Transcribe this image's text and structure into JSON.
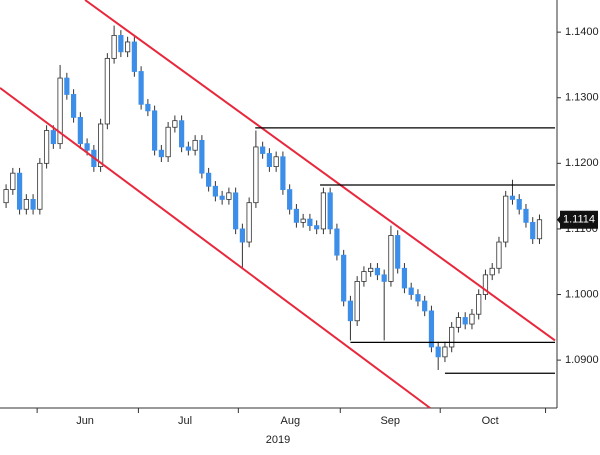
{
  "chart_data": {
    "type": "candlestick",
    "year_label": "2019",
    "up_color": "#ffffff",
    "down_color": "#3d8ee8",
    "wick_color": "#333333",
    "open": [
      1.114,
      1.116,
      1.1185,
      1.113,
      1.1145,
      1.113,
      1.12,
      1.125,
      1.123,
      1.133,
      1.1305,
      1.127,
      1.123,
      1.122,
      1.1195,
      1.126,
      1.136,
      1.1395,
      1.137,
      1.1385,
      1.134,
      1.129,
      1.128,
      1.122,
      1.121,
      1.1255,
      1.1265,
      1.1225,
      1.122,
      1.1235,
      1.1185,
      1.1165,
      1.115,
      1.1145,
      1.1155,
      1.11,
      1.108,
      1.114,
      1.1225,
      1.1215,
      1.1195,
      1.121,
      1.116,
      1.113,
      1.111,
      1.1115,
      1.1105,
      1.11,
      1.1155,
      1.11,
      1.106,
      1.099,
      1.096,
      1.102,
      1.1035,
      1.104,
      1.103,
      1.102,
      1.109,
      1.104,
      1.101,
      1.1,
      1.099,
      1.0975,
      1.092,
      1.0905,
      1.092,
      1.095,
      1.0965,
      1.0955,
      1.097,
      1.1,
      1.103,
      1.104,
      1.108,
      1.115,
      1.1145,
      1.113,
      1.111,
      1.1085
    ],
    "high": [
      1.1168,
      1.1193,
      1.1193,
      1.1153,
      1.1153,
      1.1208,
      1.1258,
      1.1258,
      1.135,
      1.1338,
      1.1313,
      1.1278,
      1.1238,
      1.1228,
      1.1268,
      1.1368,
      1.141,
      1.1403,
      1.1393,
      1.1393,
      1.1348,
      1.1298,
      1.1288,
      1.1228,
      1.1263,
      1.1273,
      1.1273,
      1.1233,
      1.1243,
      1.1243,
      1.1193,
      1.1173,
      1.1158,
      1.1163,
      1.1163,
      1.1108,
      1.1148,
      1.125,
      1.1233,
      1.1223,
      1.1218,
      1.1218,
      1.1168,
      1.1138,
      1.1123,
      1.1123,
      1.1113,
      1.1163,
      1.1163,
      1.1108,
      1.1068,
      1.0998,
      1.1028,
      1.1043,
      1.1048,
      1.1048,
      1.1038,
      1.1105,
      1.1098,
      1.1048,
      1.1018,
      1.1008,
      1.0998,
      1.0983,
      1.0928,
      1.0928,
      1.0958,
      1.0973,
      1.0973,
      1.0978,
      1.1008,
      1.1038,
      1.1048,
      1.1088,
      1.1158,
      1.1175,
      1.1153,
      1.1138,
      1.1118,
      1.1122
    ],
    "low": [
      1.1132,
      1.1152,
      1.1122,
      1.1122,
      1.1122,
      1.1122,
      1.1192,
      1.1222,
      1.1222,
      1.1297,
      1.1262,
      1.1222,
      1.1212,
      1.1187,
      1.1187,
      1.1252,
      1.1352,
      1.1362,
      1.1362,
      1.1332,
      1.1282,
      1.1272,
      1.1212,
      1.1202,
      1.1202,
      1.1247,
      1.1217,
      1.1212,
      1.1212,
      1.1177,
      1.1157,
      1.1142,
      1.1137,
      1.1137,
      1.1092,
      1.104,
      1.1072,
      1.1132,
      1.1207,
      1.1187,
      1.1187,
      1.1152,
      1.1122,
      1.1102,
      1.1102,
      1.1097,
      1.1092,
      1.1092,
      1.1092,
      1.1052,
      1.0982,
      1.093,
      1.0952,
      1.1012,
      1.1027,
      1.1022,
      1.093,
      1.1012,
      1.1032,
      1.1002,
      1.0992,
      1.0982,
      1.0967,
      1.0912,
      1.0885,
      1.0897,
      1.0912,
      1.0942,
      1.0947,
      1.0947,
      1.0962,
      1.0992,
      1.1022,
      1.1032,
      1.1072,
      1.1137,
      1.1122,
      1.1102,
      1.1077,
      1.1077
    ],
    "close": [
      1.116,
      1.1185,
      1.113,
      1.1145,
      1.113,
      1.12,
      1.125,
      1.123,
      1.133,
      1.1305,
      1.127,
      1.123,
      1.122,
      1.1195,
      1.126,
      1.136,
      1.1395,
      1.137,
      1.1385,
      1.134,
      1.129,
      1.128,
      1.122,
      1.121,
      1.1255,
      1.1265,
      1.1225,
      1.122,
      1.1235,
      1.1185,
      1.1165,
      1.115,
      1.1145,
      1.1155,
      1.11,
      1.108,
      1.114,
      1.1225,
      1.1215,
      1.1195,
      1.121,
      1.116,
      1.113,
      1.111,
      1.1115,
      1.1105,
      1.11,
      1.1155,
      1.11,
      1.106,
      1.099,
      1.096,
      1.102,
      1.1035,
      1.104,
      1.103,
      1.102,
      1.109,
      1.104,
      1.101,
      1.1,
      1.099,
      1.0975,
      1.092,
      1.0905,
      1.092,
      1.095,
      1.0965,
      1.0955,
      1.097,
      1.1,
      1.103,
      1.104,
      1.108,
      1.115,
      1.1145,
      1.113,
      1.111,
      1.1085,
      1.1114
    ],
    "last_price": 1.1114,
    "xlim": [
      -0.9,
      81.3
    ],
    "ylim": [
      1.0827,
      1.1449
    ],
    "xticks": [
      {
        "value": 11.7,
        "label": "Jun"
      },
      {
        "value": 26.5,
        "label": "Jul"
      },
      {
        "value": 42.1,
        "label": "Aug"
      },
      {
        "value": 56.9,
        "label": "Sep"
      },
      {
        "value": 71.7,
        "label": "Oct"
      }
    ],
    "xminor_ticks": [
      4.6,
      19.6,
      34.4,
      49.5,
      64.3,
      79.9
    ],
    "yticks": [
      {
        "value": 1.09,
        "label": "1.0900"
      },
      {
        "value": 1.1,
        "label": "1.1000"
      },
      {
        "value": 1.11,
        "label": "1.1100"
      },
      {
        "value": 1.12,
        "label": "1.1200"
      },
      {
        "value": 1.13,
        "label": "1.1300"
      },
      {
        "value": 1.14,
        "label": "1.1400"
      }
    ],
    "lines": [
      {
        "color": "#e8283c",
        "x": [
          11.7,
          81.3
        ],
        "y": [
          1.1449,
          1.093
        ]
      },
      {
        "color": "#e8283c",
        "x": [
          -0.9,
          62.8
        ],
        "y": [
          1.1315,
          1.0827
        ]
      },
      {
        "color": "#000000",
        "x": [
          36.9,
          81.3
        ],
        "y": [
          1.1254,
          1.1254
        ]
      },
      {
        "color": "#000000",
        "x": [
          46.5,
          81.3
        ],
        "y": [
          1.1167,
          1.1167
        ]
      },
      {
        "color": "#000000",
        "x": [
          51.0,
          81.3
        ],
        "y": [
          1.0927,
          1.0927
        ]
      },
      {
        "color": "#000000",
        "x": [
          65.0,
          81.3
        ],
        "y": [
          1.088,
          1.088
        ]
      }
    ]
  }
}
